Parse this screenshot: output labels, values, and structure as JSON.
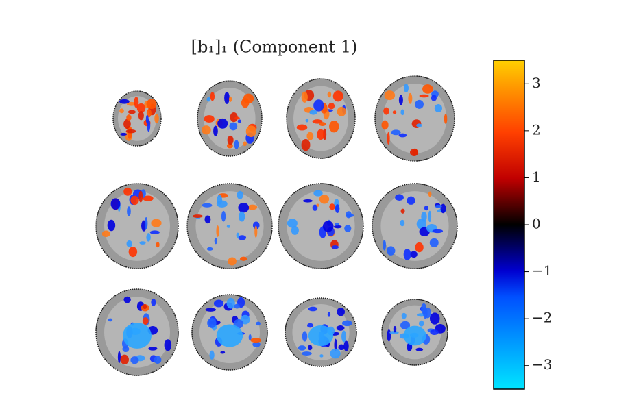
{
  "title": "[b₁]₁ (Component 1)",
  "colorbar": {
    "lim": [
      -3.5,
      3.5
    ],
    "ticks": [
      {
        "value": -3,
        "label": "−3"
      },
      {
        "value": -2,
        "label": "−2"
      },
      {
        "value": -1,
        "label": "−1"
      },
      0,
      1,
      2,
      3
    ]
  }
}
